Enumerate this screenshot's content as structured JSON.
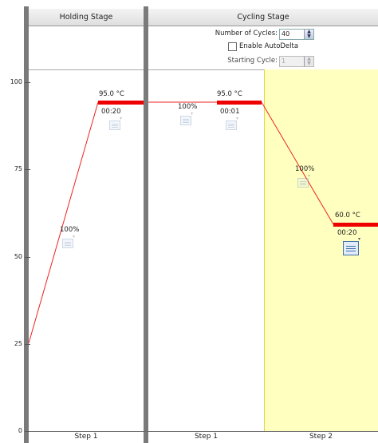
{
  "stages": [
    {
      "title": "Holding Stage"
    },
    {
      "title": "Cycling Stage"
    }
  ],
  "cycling_controls": {
    "cycles_label": "Number of Cycles:",
    "cycles_value": "40",
    "autodelta_label": "Enable AutoDelta",
    "autodelta_checked": false,
    "starting_cycle_label": "Starting Cycle:",
    "starting_cycle_value": "1"
  },
  "y_axis": {
    "ticks": [
      "100",
      "75",
      "50",
      "25",
      "0"
    ]
  },
  "steps": [
    {
      "label": "Step 1",
      "temp": "95.0 °C",
      "time": "00:20",
      "ramp": "100%"
    },
    {
      "label": "Step 1",
      "temp": "95.0 °C",
      "time": "00:01",
      "ramp": "100%"
    },
    {
      "label": "Step 2",
      "temp": "60.0 °C",
      "time": "00:20",
      "ramp": "100%"
    }
  ],
  "colors": {
    "hold_line": "#ee0000",
    "ramp_line": "#ee2222",
    "selected_step_bg": "#ffffc0",
    "separator": "#7a7a7a"
  },
  "icons": [
    "data-collection-icon"
  ]
}
